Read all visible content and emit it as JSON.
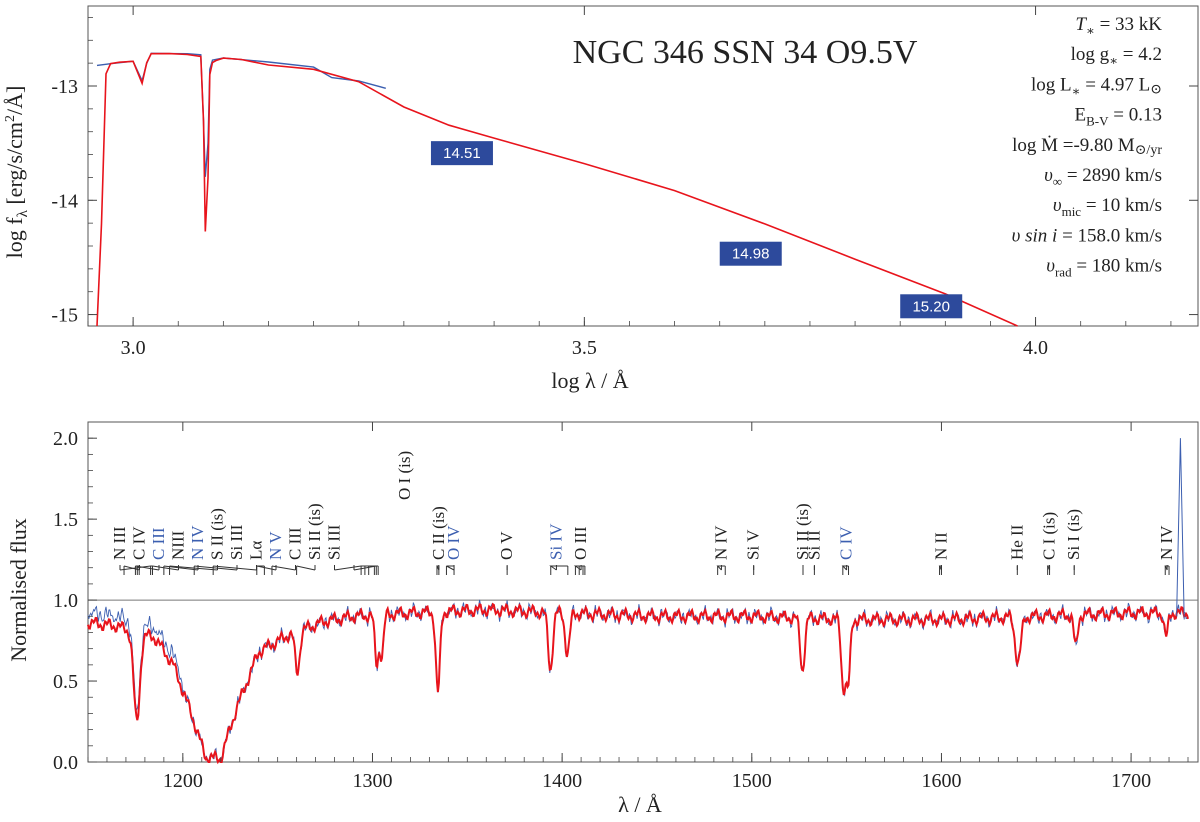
{
  "colors": {
    "model": "#e8141c",
    "observed": "#3c5fb0",
    "badge": "#2d4a9c",
    "blue_label": "#3c5fb0"
  },
  "chart_data": [
    {
      "type": "line",
      "panel": "top",
      "title": "NGC 346 SSN 34 O9.5V",
      "xlabel": "log λ / Å",
      "ylabel": "log f_λ [erg/s/cm²/Å]",
      "ylabel_parts": [
        "log f",
        "λ",
        " [erg/s/cm",
        "2",
        "/Å]"
      ],
      "xlim": [
        2.95,
        4.18
      ],
      "ylim": [
        -15.1,
        -12.3
      ],
      "xticks": [
        3.0,
        3.5,
        4.0
      ],
      "xtick_labels": [
        "3.0",
        "3.5",
        "4.0"
      ],
      "yticks": [
        -15,
        -14,
        -13
      ],
      "ytick_labels": [
        "-15",
        "-14",
        "-13"
      ],
      "series": [
        {
          "name": "model",
          "x": [
            2.96,
            2.965,
            2.97,
            2.975,
            2.985,
            3.0,
            3.01,
            3.015,
            3.02,
            3.04,
            3.06,
            3.075,
            3.078,
            3.08,
            3.083,
            3.085,
            3.088,
            3.092,
            3.1,
            3.12,
            3.15,
            3.2,
            3.25,
            3.3,
            3.35,
            3.4,
            3.5,
            3.6,
            3.7,
            3.8,
            3.9,
            3.98
          ],
          "y": [
            -15.1,
            -14.2,
            -12.9,
            -12.8,
            -12.79,
            -12.79,
            -12.97,
            -12.8,
            -12.72,
            -12.71,
            -12.73,
            -12.74,
            -13.3,
            -14.28,
            -13.8,
            -12.9,
            -12.8,
            -12.77,
            -12.76,
            -12.77,
            -12.81,
            -12.86,
            -12.96,
            -13.18,
            -13.35,
            -13.45,
            -13.68,
            -13.92,
            -14.2,
            -14.52,
            -14.82,
            -15.12
          ]
        },
        {
          "name": "observed",
          "x": [
            2.96,
            2.975,
            3.0,
            3.01,
            3.015,
            3.02,
            3.04,
            3.06,
            3.075,
            3.078,
            3.08,
            3.083,
            3.085,
            3.088,
            3.1,
            3.15,
            3.2,
            3.22,
            3.25,
            3.28
          ],
          "y": [
            -12.82,
            -12.8,
            -12.79,
            -12.95,
            -12.8,
            -12.72,
            -12.71,
            -12.72,
            -12.73,
            -13.3,
            -13.8,
            -13.5,
            -12.85,
            -12.78,
            -12.75,
            -12.79,
            -12.84,
            -12.92,
            -12.96,
            -13.02
          ]
        }
      ],
      "photometry_labels": [
        {
          "label": "14.51",
          "x": 3.34,
          "y": -13.5
        },
        {
          "label": "14.98",
          "x": 3.66,
          "y": -14.38
        },
        {
          "label": "15.20",
          "x": 3.86,
          "y": -14.84
        }
      ],
      "parameters": [
        {
          "label": "T",
          "sub": "∗",
          "value": "= 33 kK"
        },
        {
          "label": "log g",
          "sub": "∗",
          "value": "= 4.2"
        },
        {
          "label": "log L",
          "sub": "∗",
          "value": "= 4.97 L",
          "value_tail": "⊙"
        },
        {
          "label": "E",
          "sub": "B-V",
          "value": "= 0.13"
        },
        {
          "label": "log Ṁ",
          "sub": "",
          "value": "=-9.80 M",
          "value_tail": "⊙/yr"
        },
        {
          "label": "υ",
          "sub": "∞",
          "value": "= 2890 km/s"
        },
        {
          "label": "υ",
          "sub": "mic",
          "value": "= 10 km/s"
        },
        {
          "label": "υ sin i",
          "sub": "",
          "value": "= 158.0 km/s"
        },
        {
          "label": "υ",
          "sub": "rad",
          "value": "= 180 km/s"
        }
      ]
    },
    {
      "type": "line",
      "panel": "bottom",
      "xlabel": "λ / Å",
      "ylabel": "Normalised flux",
      "xlim": [
        1150,
        1730
      ],
      "ylim": [
        0.0,
        2.1
      ],
      "reference_line": 1.0,
      "xticks": [
        1200,
        1300,
        1400,
        1500,
        1600,
        1700
      ],
      "xtick_labels": [
        "1200",
        "1300",
        "1400",
        "1500",
        "1600",
        "1700"
      ],
      "yticks": [
        0.0,
        0.5,
        1.0,
        1.5,
        2.0
      ],
      "ytick_labels": [
        "0.0",
        "0.5",
        "1.0",
        "1.5",
        "2.0"
      ],
      "continuum": [
        [
          1150,
          0.86
        ],
        [
          1165,
          0.84
        ],
        [
          1175,
          0.8
        ],
        [
          1185,
          0.77
        ],
        [
          1195,
          0.6
        ],
        [
          1205,
          0.28
        ],
        [
          1212,
          0.03
        ],
        [
          1220,
          0.02
        ],
        [
          1228,
          0.32
        ],
        [
          1240,
          0.68
        ],
        [
          1255,
          0.78
        ],
        [
          1275,
          0.87
        ],
        [
          1290,
          0.9
        ],
        [
          1320,
          0.92
        ],
        [
          1360,
          0.94
        ],
        [
          1400,
          0.92
        ],
        [
          1450,
          0.9
        ],
        [
          1500,
          0.9
        ],
        [
          1550,
          0.88
        ],
        [
          1600,
          0.88
        ],
        [
          1650,
          0.9
        ],
        [
          1700,
          0.92
        ],
        [
          1730,
          0.92
        ]
      ],
      "absorption_lines": [
        {
          "wl": 1175.7,
          "depth": 0.55,
          "width": 1.6
        },
        {
          "wl": 1260.4,
          "depth": 0.25,
          "width": 1.2
        },
        {
          "wl": 1302.2,
          "depth": 0.3,
          "width": 1.0
        },
        {
          "wl": 1304.9,
          "depth": 0.25,
          "width": 1.0
        },
        {
          "wl": 1334.5,
          "depth": 0.5,
          "width": 1.1
        },
        {
          "wl": 1393.8,
          "depth": 0.35,
          "width": 1.2
        },
        {
          "wl": 1402.8,
          "depth": 0.25,
          "width": 1.2
        },
        {
          "wl": 1526.7,
          "depth": 0.32,
          "width": 1.2
        },
        {
          "wl": 1548.2,
          "depth": 0.4,
          "width": 1.1
        },
        {
          "wl": 1550.8,
          "depth": 0.4,
          "width": 1.1
        },
        {
          "wl": 1640.4,
          "depth": 0.28,
          "width": 1.5
        },
        {
          "wl": 1670.8,
          "depth": 0.2,
          "width": 1.0
        },
        {
          "wl": 1718.5,
          "depth": 0.15,
          "width": 1.0
        }
      ],
      "line_ids": [
        {
          "label": "N III",
          "wl": 1183,
          "ticks": [
            1183,
            1184
          ],
          "blue": false
        },
        {
          "label": "C IV",
          "wl": 1169,
          "ticks": [
            1169
          ],
          "blue": false
        },
        {
          "label": "C III",
          "wl": 1176,
          "ticks": [
            1175,
            1176,
            1177
          ],
          "blue": true
        },
        {
          "label": "NIII",
          "wl": 1184,
          "ticks": [
            1184
          ],
          "blue": false
        },
        {
          "label": "N IV",
          "wl": 1190,
          "ticks": [
            1190
          ],
          "blue": true
        },
        {
          "label": "S II (is)",
          "wl": 1193,
          "ticks": [
            1193
          ],
          "blue": false
        },
        {
          "label": "Si III",
          "wl": 1206,
          "ticks": [
            1206
          ],
          "blue": false
        },
        {
          "label": "Lα",
          "wl": 1216,
          "ticks": [
            1216
          ],
          "blue": false
        },
        {
          "label": "N V",
          "wl": 1240,
          "ticks": [
            1239,
            1243
          ],
          "blue": true
        },
        {
          "label": "C III",
          "wl": 1247,
          "ticks": [
            1247
          ],
          "blue": false
        },
        {
          "label": "Si II (is)",
          "wl": 1260,
          "ticks": [
            1260
          ],
          "blue": false
        },
        {
          "label": "Si III",
          "wl": 1296,
          "ticks": [
            1294,
            1296,
            1298,
            1301,
            1303
          ],
          "blue": false
        },
        {
          "label": "O I (is)",
          "wl": 1302,
          "ticks": [
            1302
          ],
          "blue": false
        },
        {
          "label": "C II (is)",
          "wl": 1335,
          "ticks": [
            1334,
            1335
          ],
          "blue": false
        },
        {
          "label": "O IV",
          "wl": 1343,
          "ticks": [
            1339,
            1343
          ],
          "blue": true
        },
        {
          "label": "O V",
          "wl": 1371,
          "ticks": [
            1371
          ],
          "blue": false
        },
        {
          "label": "Si IV",
          "wl": 1397,
          "ticks": [
            1394,
            1403
          ],
          "blue": true
        },
        {
          "label": "O III",
          "wl": 1410,
          "ticks": [
            1407,
            1409,
            1411,
            1412
          ],
          "blue": false
        },
        {
          "label": "N IV",
          "wl": 1484,
          "ticks": [
            1482,
            1486
          ],
          "blue": false
        },
        {
          "label": "Si V",
          "wl": 1501,
          "ticks": [
            1501
          ],
          "blue": false
        },
        {
          "label": "Si II (is)",
          "wl": 1527,
          "ticks": [
            1527
          ],
          "blue": false
        },
        {
          "label": "Si II",
          "wl": 1533,
          "ticks": [
            1533
          ],
          "blue": false
        },
        {
          "label": "C IV",
          "wl": 1550,
          "ticks": [
            1548,
            1551
          ],
          "blue": true
        },
        {
          "label": "N II",
          "wl": 1600,
          "ticks": [
            1599,
            1600
          ],
          "blue": false
        },
        {
          "label": "C I (is)",
          "wl": 1657,
          "ticks": [
            1656,
            1657
          ],
          "blue": false
        },
        {
          "label": "He II",
          "wl": 1640,
          "ticks": [
            1640
          ],
          "blue": false
        },
        {
          "label": "Si I (is)",
          "wl": 1670,
          "ticks": [
            1670
          ],
          "blue": false
        },
        {
          "label": "N IV",
          "wl": 1719,
          "ticks": [
            1718,
            1720
          ],
          "blue": false
        }
      ]
    }
  ]
}
